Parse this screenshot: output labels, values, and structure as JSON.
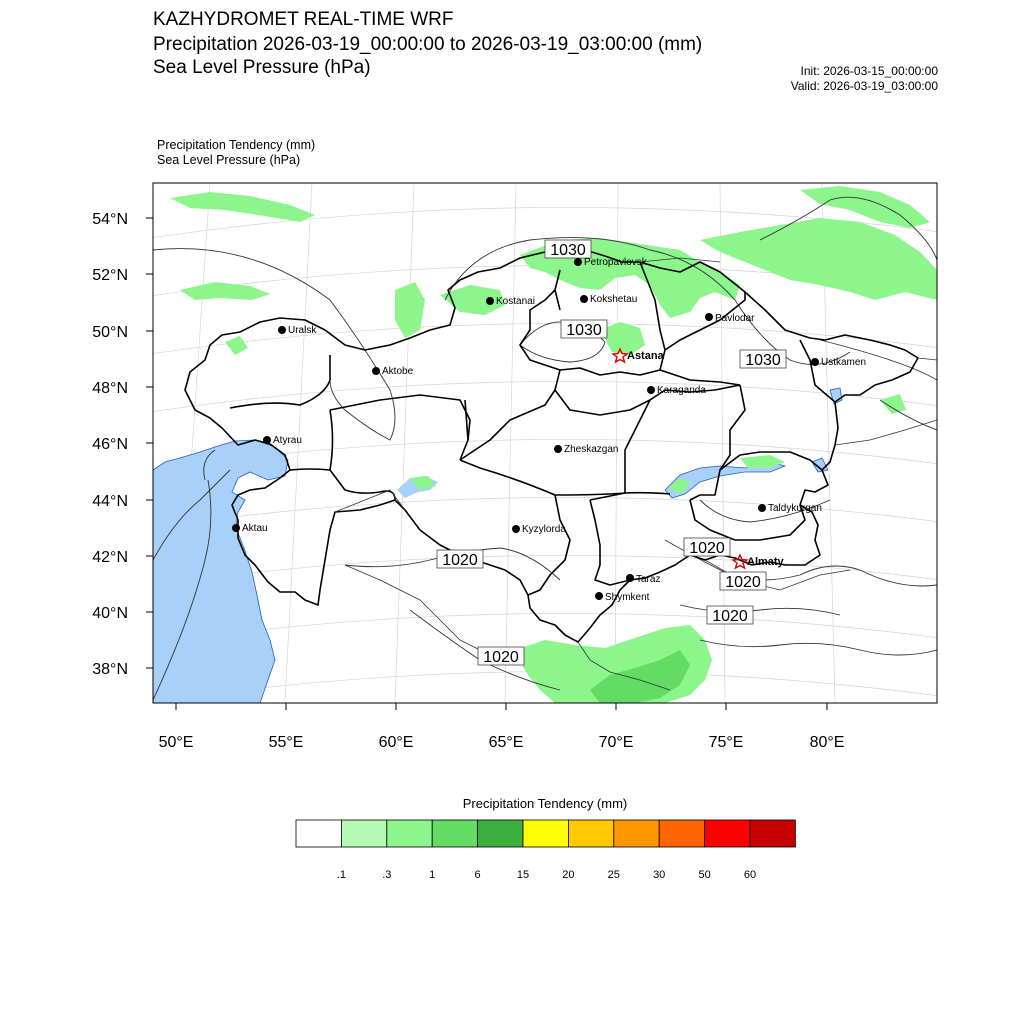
{
  "header": {
    "title1": "KAZHYDROMET REAL-TIME WRF",
    "title2": "Precipitation 2026-03-19_00:00:00 to 2026-03-19_03:00:00 (mm)",
    "title3": "Sea Level Pressure  (hPa)",
    "init": "Init: 2026-03-15_00:00:00",
    "valid": "Valid: 2026-03-19_03:00:00"
  },
  "subtitle": {
    "line1": "Precipitation Tendency   (mm)",
    "line2": "Sea Level Pressure   (hPa)"
  },
  "axes": {
    "lat_labels": [
      "54°N",
      "52°N",
      "50°N",
      "48°N",
      "46°N",
      "44°N",
      "42°N",
      "40°N",
      "38°N"
    ],
    "lon_labels": [
      "50°E",
      "55°E",
      "60°E",
      "65°E",
      "70°E",
      "75°E",
      "80°E"
    ]
  },
  "cities": [
    {
      "name": "Petropavlovsk",
      "type": "dot"
    },
    {
      "name": "Kostanai",
      "type": "dot"
    },
    {
      "name": "Kokshetau",
      "type": "dot"
    },
    {
      "name": "Pavlodar",
      "type": "dot"
    },
    {
      "name": "Uralsk",
      "type": "dot"
    },
    {
      "name": "Astana",
      "type": "star"
    },
    {
      "name": "Ustkamen",
      "type": "dot"
    },
    {
      "name": "Aktobe",
      "type": "dot"
    },
    {
      "name": "Karaganda",
      "type": "dot"
    },
    {
      "name": "Atyrau",
      "type": "dot"
    },
    {
      "name": "Zheskazgan",
      "type": "dot"
    },
    {
      "name": "Aktau",
      "type": "dot"
    },
    {
      "name": "Taldykurgan",
      "type": "dot"
    },
    {
      "name": "Kyzylorda",
      "type": "dot"
    },
    {
      "name": "Almaty",
      "type": "star"
    },
    {
      "name": "Taraz",
      "type": "dot"
    },
    {
      "name": "Shymkent",
      "type": "dot"
    }
  ],
  "isobar_labels": [
    "1030",
    "1030",
    "1030",
    "1020",
    "1020",
    "1020",
    "1020",
    "1020"
  ],
  "colorbar": {
    "title": "Precipitation Tendency (mm)",
    "colors": [
      "#ffffff",
      "#b4fab4",
      "#8cf58c",
      "#64dc64",
      "#3caf3c",
      "#ffff00",
      "#ffc800",
      "#ff9600",
      "#ff6400",
      "#ff0000",
      "#c80000"
    ],
    "ticks": [
      ".1",
      ".3",
      "1",
      "6",
      "15",
      "20",
      "25",
      "30",
      "50",
      "60"
    ]
  },
  "map_colors": {
    "water": "#a8d0f8",
    "precip_light": "#8cf58c",
    "precip_dark": "#64dc64",
    "border": "#000000"
  }
}
